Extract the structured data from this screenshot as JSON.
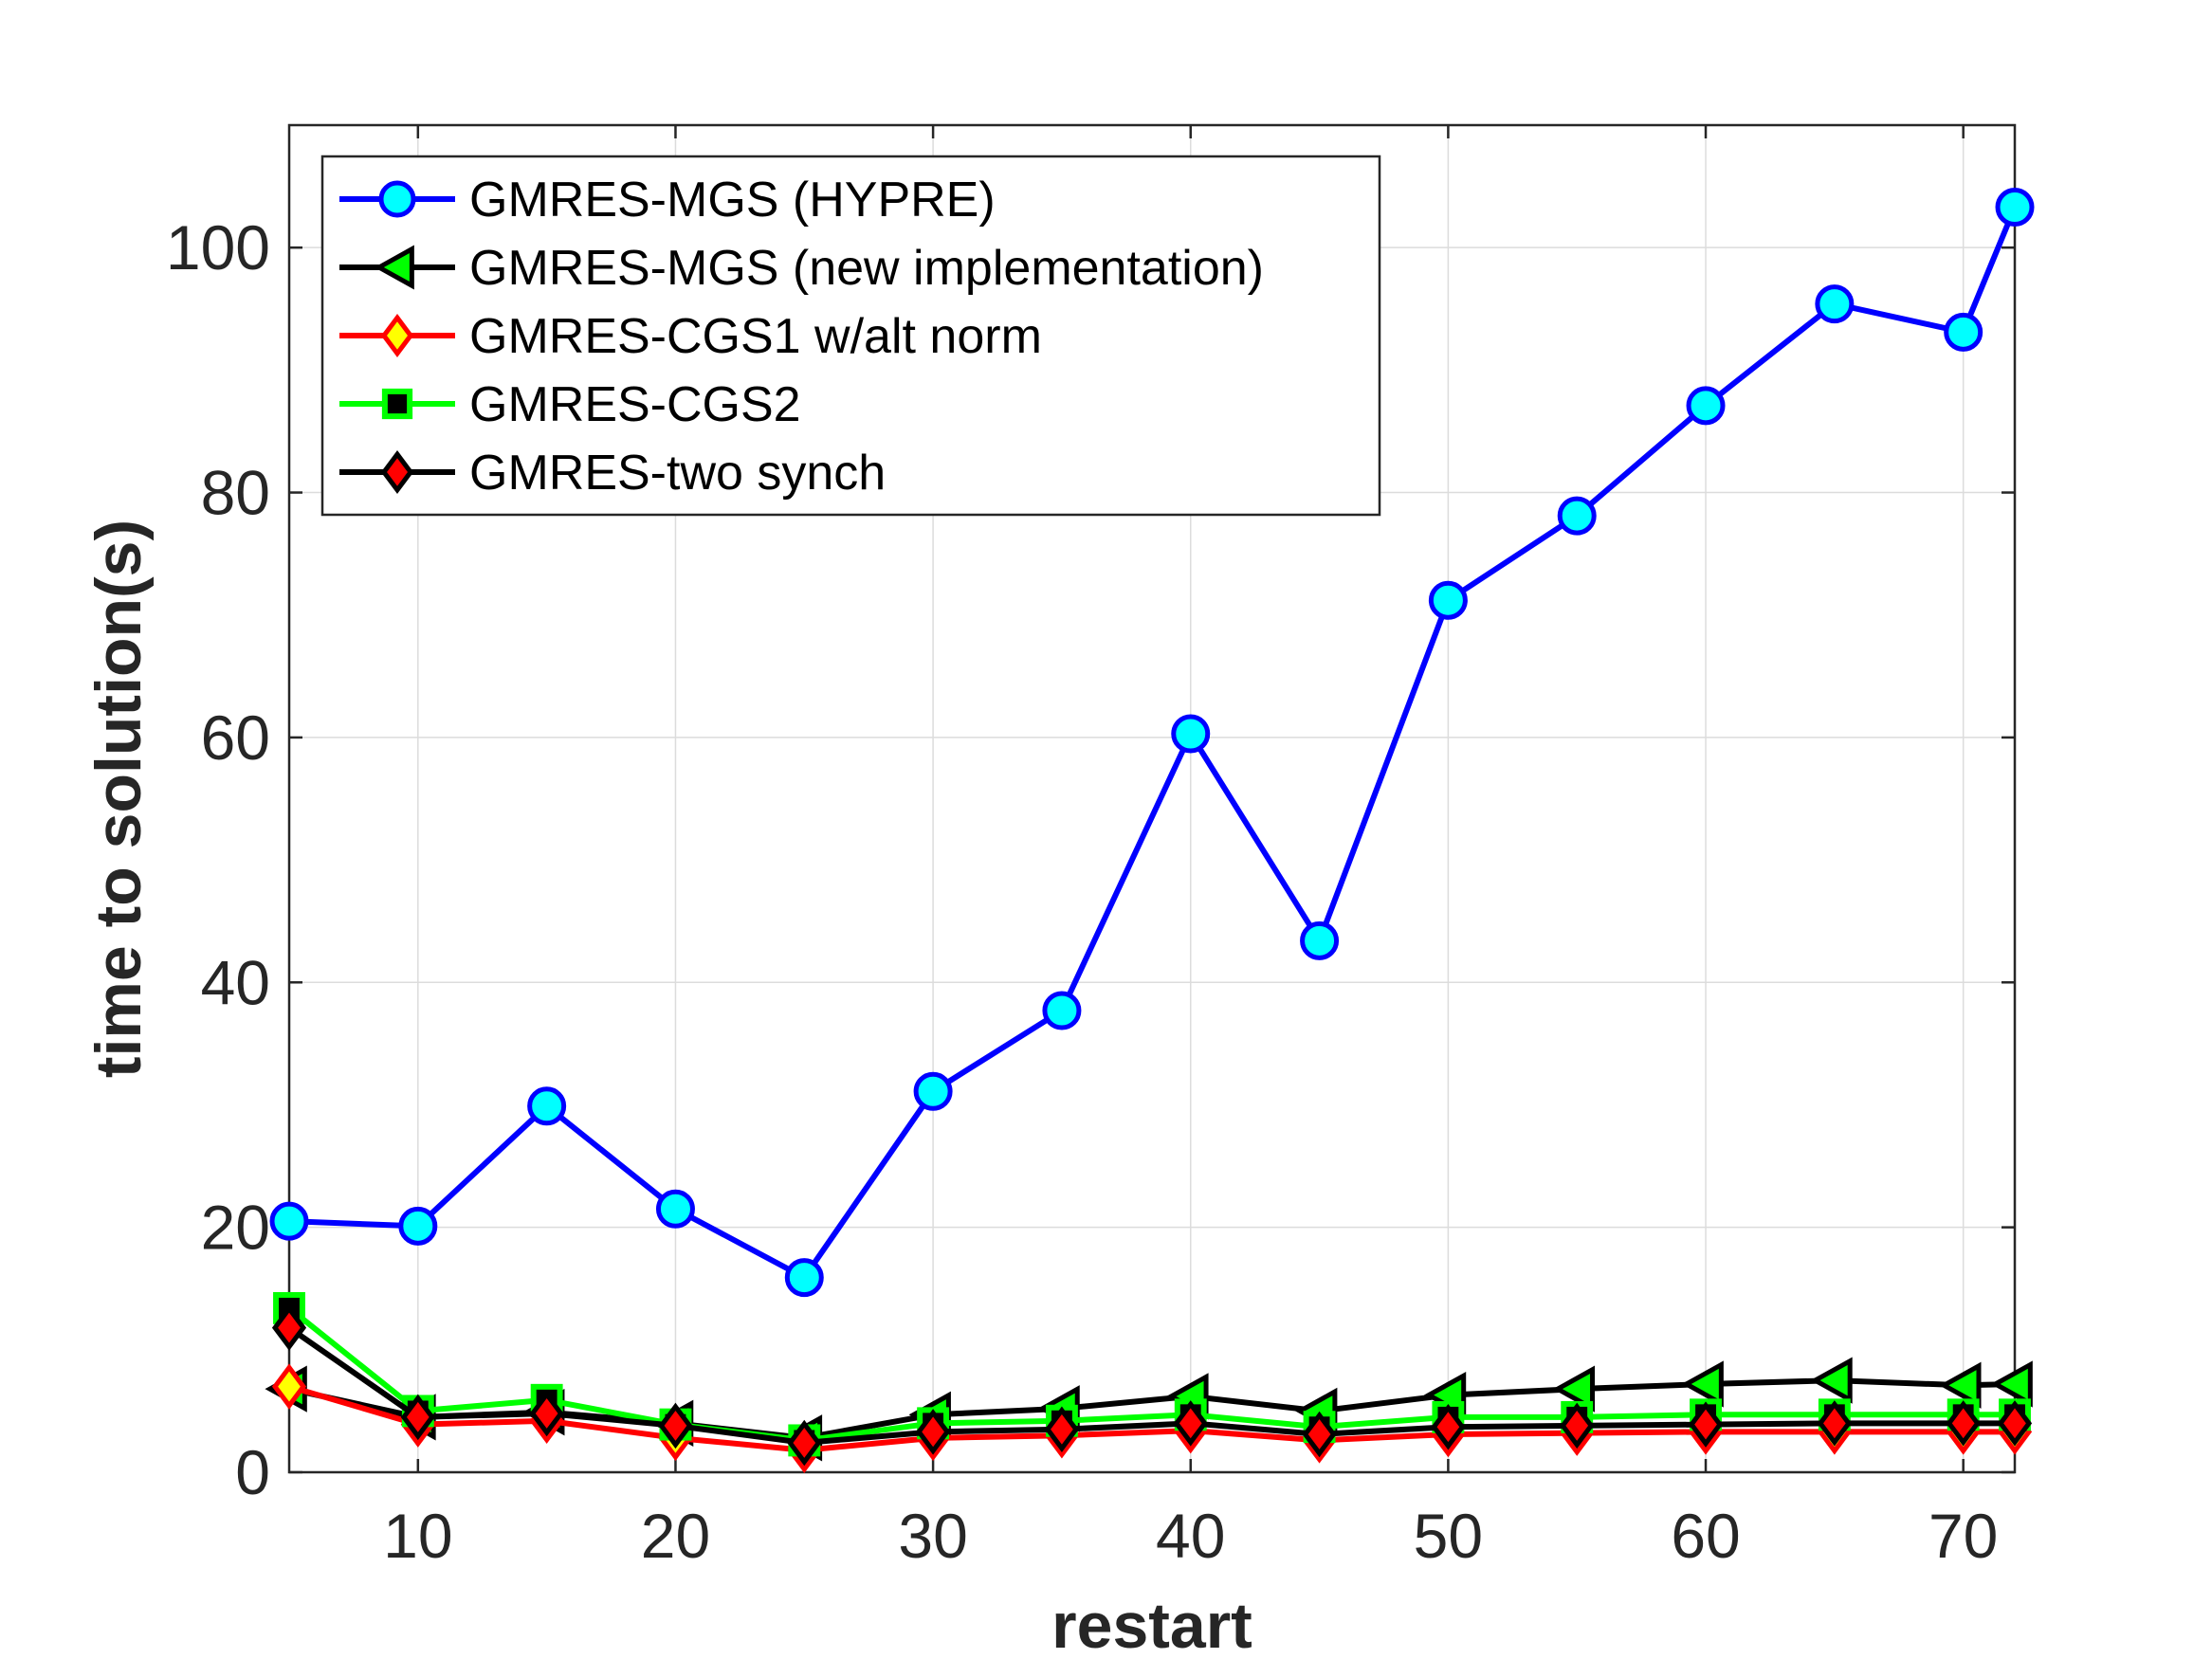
{
  "chart_data": {
    "type": "line",
    "title": "",
    "xlabel": "restart",
    "ylabel": "time to solution(s)",
    "xlim": [
      5,
      72
    ],
    "ylim": [
      0,
      110
    ],
    "xticks": [
      10,
      20,
      30,
      40,
      50,
      60,
      70
    ],
    "yticks": [
      0,
      20,
      40,
      60,
      80,
      100
    ],
    "grid": true,
    "legend_position": "top-left",
    "x": [
      5,
      10,
      15,
      20,
      25,
      30,
      35,
      40,
      45,
      50,
      55,
      60,
      65,
      70,
      72
    ],
    "series": [
      {
        "name": "GMRES-MGS (HYPRE)",
        "line_color": "#0000ff",
        "marker": "circle",
        "marker_fill": "#00ffff",
        "marker_edge": "#0000ff",
        "values": [
          20.5,
          20.1,
          29.9,
          21.5,
          15.9,
          31.1,
          37.7,
          60.3,
          43.4,
          71.2,
          78.1,
          87.1,
          95.4,
          93.1,
          103.3
        ]
      },
      {
        "name": "GMRES-MGS (new implementation)",
        "line_color": "#000000",
        "marker": "triangle-left",
        "marker_fill": "#00ff00",
        "marker_edge": "#000000",
        "values": [
          6.8,
          4.5,
          4.9,
          4.0,
          2.8,
          4.7,
          5.2,
          6.2,
          5.0,
          6.3,
          6.8,
          7.2,
          7.5,
          7.1,
          7.2
        ]
      },
      {
        "name": "GMRES-CGS1 w/alt norm",
        "line_color": "#ff0000",
        "marker": "diamond",
        "marker_fill": "#ffff00",
        "marker_edge": "#ff0000",
        "values": [
          7.0,
          3.9,
          4.2,
          2.8,
          1.8,
          2.8,
          3.0,
          3.4,
          2.6,
          3.1,
          3.2,
          3.3,
          3.3,
          3.3,
          3.3
        ]
      },
      {
        "name": "GMRES-CGS2",
        "line_color": "#00ff00",
        "marker": "square",
        "marker_fill": "#000000",
        "marker_edge": "#00ff00",
        "values": [
          13.4,
          5.0,
          5.9,
          3.9,
          2.6,
          4.0,
          4.2,
          4.7,
          3.7,
          4.5,
          4.5,
          4.7,
          4.7,
          4.7,
          4.7
        ]
      },
      {
        "name": "GMRES-two synch",
        "line_color": "#000000",
        "marker": "diamond",
        "marker_fill": "#ff0000",
        "marker_edge": "#000000",
        "values": [
          11.8,
          4.5,
          4.8,
          3.8,
          2.4,
          3.3,
          3.5,
          4.0,
          3.1,
          3.7,
          3.8,
          3.9,
          4.0,
          4.0,
          4.0
        ]
      }
    ]
  }
}
